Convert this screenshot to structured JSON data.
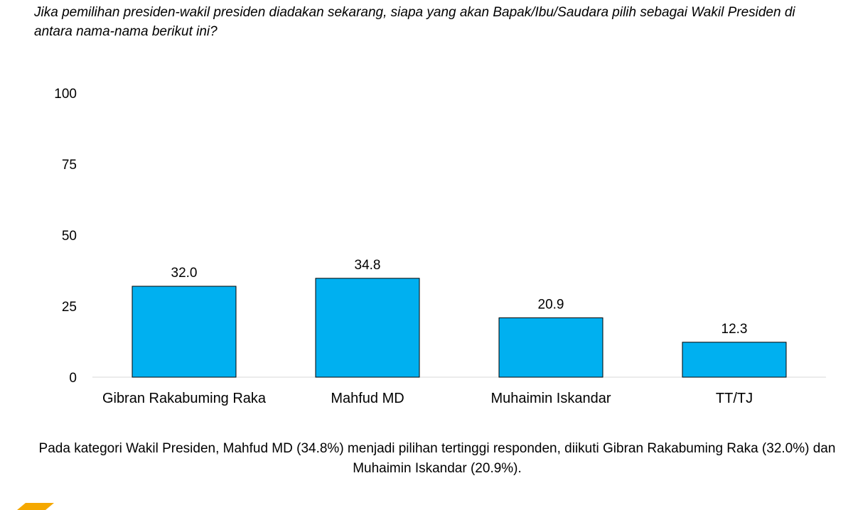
{
  "question": "Jika pemilihan presiden-wakil presiden diadakan sekarang, siapa yang akan Bapak/Ibu/Saudara pilih sebagai Wakil Presiden di antara nama-nama berikut ini?",
  "summary": "Pada kategori Wakil Presiden, Mahfud MD (34.8%) menjadi pilihan tertinggi responden, diikuti Gibran Rakabuming Raka (32.0%) dan Muhaimin Iskandar (20.9%).",
  "colors": {
    "bar": "#00b0f0",
    "logo": "#f5a800"
  },
  "chart_data": {
    "type": "bar",
    "title": "",
    "xlabel": "",
    "ylabel": "",
    "categories": [
      "Gibran Rakabuming Raka",
      "Mahfud MD",
      "Muhaimin Iskandar",
      "TT/TJ"
    ],
    "values": [
      32.0,
      34.8,
      20.9,
      12.3
    ],
    "data_labels": [
      "32.0",
      "34.8",
      "20.9",
      "12.3"
    ],
    "ylim": [
      0,
      100
    ],
    "yticks": [
      0,
      25,
      50,
      75,
      100
    ],
    "grid": false,
    "legend": "none"
  }
}
